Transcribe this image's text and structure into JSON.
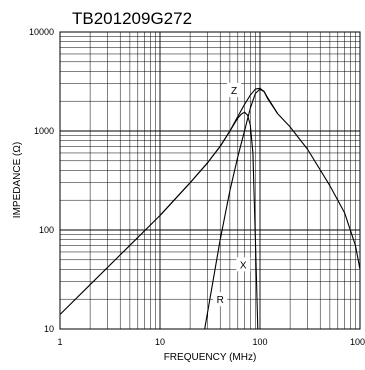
{
  "chart_data": {
    "type": "line",
    "title": "TB201209G272",
    "xlabel": "FREQUENCY (MHz)",
    "ylabel": "IMPEDANCE (Ω)",
    "x_scale": "log",
    "y_scale": "log",
    "xlim": [
      1,
      1000
    ],
    "ylim": [
      10,
      10000
    ],
    "x_ticks": [
      "1",
      "10",
      "100",
      "1000"
    ],
    "y_ticks": [
      "10",
      "100",
      "1000",
      "10000"
    ],
    "grid": true,
    "series": [
      {
        "name": "Z",
        "x": [
          1,
          2,
          5,
          10,
          20,
          30,
          40,
          50,
          60,
          70,
          80,
          90,
          100,
          110,
          120,
          150,
          200,
          300,
          500,
          700,
          900,
          1000
        ],
        "y": [
          14,
          28,
          70,
          140,
          300,
          480,
          700,
          1000,
          1400,
          1850,
          2300,
          2650,
          2700,
          2500,
          2150,
          1500,
          1100,
          650,
          280,
          150,
          70,
          40
        ]
      },
      {
        "name": "X",
        "x": [
          10,
          20,
          30,
          40,
          50,
          60,
          65,
          70,
          75,
          80,
          85,
          90,
          95
        ],
        "y": [
          140,
          300,
          480,
          700,
          1000,
          1350,
          1480,
          1550,
          1450,
          1150,
          600,
          80,
          10
        ]
      },
      {
        "name": "R",
        "x": [
          28,
          30,
          40,
          50,
          60,
          70,
          80,
          90,
          100,
          110,
          120,
          150
        ],
        "y": [
          10,
          15,
          80,
          250,
          550,
          1000,
          1700,
          2400,
          2650,
          2500,
          2100,
          1500
        ]
      }
    ],
    "curve_labels": [
      {
        "text": "Z",
        "x": 55,
        "y": 2600
      },
      {
        "text": "X",
        "x": 68,
        "y": 45
      },
      {
        "text": "R",
        "x": 40,
        "y": 20
      }
    ]
  }
}
